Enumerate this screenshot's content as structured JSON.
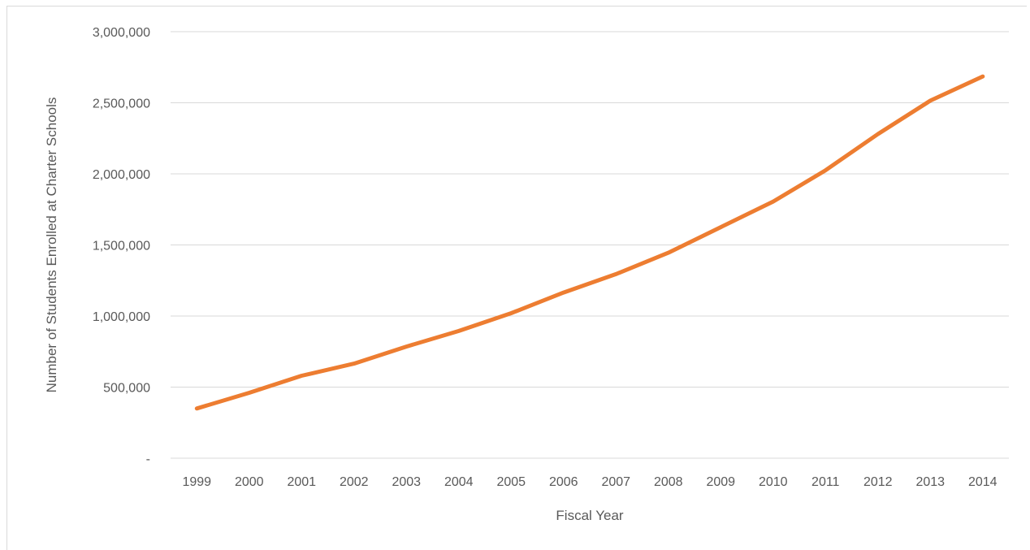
{
  "chart_data": {
    "type": "line",
    "title": "",
    "xlabel": "Fiscal Year",
    "ylabel": "Number of Students Enrolled at Charter Schools",
    "categories": [
      "1999",
      "2000",
      "2001",
      "2002",
      "2003",
      "2004",
      "2005",
      "2006",
      "2007",
      "2008",
      "2009",
      "2010",
      "2011",
      "2012",
      "2013",
      "2014"
    ],
    "series": [
      {
        "values": [
          350000,
          460000,
          580000,
          665000,
          785000,
          895000,
          1020000,
          1165000,
          1295000,
          1445000,
          1625000,
          1805000,
          2025000,
          2280000,
          2515000,
          2685000
        ],
        "color": "#ED7D31"
      }
    ],
    "ylim": [
      0,
      3000000
    ],
    "yticks": [
      0,
      500000,
      1000000,
      1500000,
      2000000,
      2500000,
      3000000
    ],
    "ytick_labels": [
      "-",
      "500,000",
      "1,000,000",
      "1,500,000",
      "2,000,000",
      "2,500,000",
      "3,000,000"
    ],
    "grid": true,
    "legend": "none"
  }
}
